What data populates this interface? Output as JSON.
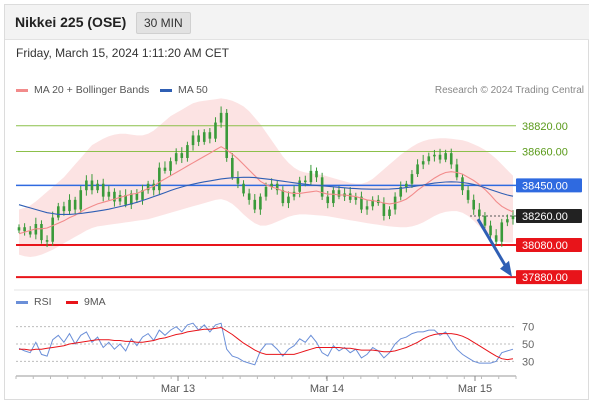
{
  "header": {
    "title": "Nikkei 225 (OSE)",
    "timeframe": "30 MIN"
  },
  "timestamp": "Friday, March 15, 2024 1:11:20 AM CET",
  "legend": {
    "ma20_label": "MA 20 + Bollinger Bands",
    "ma50_label": "MA 50"
  },
  "research_credit": "Research © 2024 Trading Central",
  "colors": {
    "ma20": "#f28b8b",
    "ma50": "#2f5fb4",
    "band_fill": "#fbd9d9",
    "candle": "#3a9a3a",
    "resistance": "#8cc04a",
    "support": "#e8141a",
    "pivot": "#2f6ae0",
    "current": "#222222",
    "rsi": "#6b8fd8",
    "rsi_ma": "#e8141a",
    "arrow": "#2f5fb4"
  },
  "chart_data": {
    "type": "candlestick",
    "interval": "30 MIN",
    "x_ticks": [
      "Mar 13",
      "Mar 14",
      "Mar 15"
    ],
    "ylim": [
      37850,
      38980
    ],
    "levels": [
      {
        "value": 38820,
        "label": "38820.00",
        "kind": "resistance"
      },
      {
        "value": 38660,
        "label": "38660.00",
        "kind": "resistance"
      },
      {
        "value": 38450,
        "label": "38450.00",
        "kind": "pivot"
      },
      {
        "value": 38260,
        "label": "38260.00",
        "kind": "current"
      },
      {
        "value": 38080,
        "label": "38080.00",
        "kind": "support"
      },
      {
        "value": 37880,
        "label": "37880.00",
        "kind": "support"
      }
    ],
    "closes": [
      38190,
      38165,
      38145,
      38210,
      38110,
      38100,
      38250,
      38320,
      38290,
      38360,
      38300,
      38420,
      38480,
      38420,
      38460,
      38380,
      38410,
      38350,
      38390,
      38330,
      38400,
      38360,
      38420,
      38460,
      38420,
      38560,
      38540,
      38600,
      38650,
      38620,
      38700,
      38760,
      38720,
      38780,
      38740,
      38840,
      38900,
      38620,
      38500,
      38460,
      38400,
      38360,
      38300,
      38380,
      38440,
      38460,
      38420,
      38340,
      38380,
      38410,
      38480,
      38470,
      38540,
      38500,
      38380,
      38340,
      38420,
      38380,
      38400,
      38360,
      38380,
      38300,
      38320,
      38360,
      38340,
      38260,
      38300,
      38380,
      38440,
      38460,
      38520,
      38580,
      38600,
      38630,
      38640,
      38610,
      38650,
      38580,
      38500,
      38420,
      38360,
      38300,
      38260,
      38200,
      38140,
      38100,
      38220,
      38240,
      38260
    ],
    "ma20": [
      38150,
      38160,
      38170,
      38180,
      38180,
      38185,
      38200,
      38215,
      38230,
      38250,
      38265,
      38285,
      38305,
      38320,
      38335,
      38345,
      38355,
      38365,
      38375,
      38385,
      38395,
      38400,
      38415,
      38430,
      38445,
      38470,
      38490,
      38510,
      38530,
      38550,
      38570,
      38590,
      38610,
      38630,
      38650,
      38670,
      38690,
      38670,
      38645,
      38615,
      38580,
      38545,
      38510,
      38475,
      38455,
      38440,
      38430,
      38415,
      38405,
      38400,
      38400,
      38405,
      38410,
      38415,
      38405,
      38395,
      38395,
      38390,
      38390,
      38385,
      38380,
      38370,
      38360,
      38355,
      38350,
      38340,
      38335,
      38340,
      38350,
      38365,
      38390,
      38420,
      38445,
      38470,
      38495,
      38515,
      38530,
      38535,
      38530,
      38520,
      38500,
      38480,
      38455,
      38425,
      38390,
      38350,
      38320,
      38300,
      38285
    ],
    "ma50": [
      38330,
      38320,
      38310,
      38300,
      38290,
      38280,
      38275,
      38270,
      38270,
      38270,
      38272,
      38275,
      38280,
      38285,
      38290,
      38296,
      38302,
      38310,
      38318,
      38326,
      38335,
      38345,
      38356,
      38368,
      38380,
      38392,
      38405,
      38418,
      38430,
      38440,
      38450,
      38458,
      38465,
      38472,
      38478,
      38484,
      38490,
      38494,
      38497,
      38499,
      38500,
      38500,
      38498,
      38494,
      38490,
      38486,
      38481,
      38476,
      38471,
      38466,
      38461,
      38457,
      38453,
      38450,
      38447,
      38444,
      38441,
      38438,
      38435,
      38432,
      38430,
      38428,
      38427,
      38426,
      38426,
      38426,
      38427,
      38429,
      38432,
      38436,
      38441,
      38447,
      38453,
      38459,
      38464,
      38468,
      38471,
      38472,
      38471,
      38468,
      38463,
      38456,
      38447,
      38436,
      38424,
      38412,
      38400,
      38390,
      38383
    ],
    "bb_upper": [
      38300,
      38310,
      38325,
      38350,
      38380,
      38410,
      38440,
      38470,
      38500,
      38540,
      38580,
      38620,
      38660,
      38700,
      38720,
      38740,
      38755,
      38765,
      38770,
      38770,
      38765,
      38760,
      38760,
      38770,
      38790,
      38820,
      38850,
      38880,
      38900,
      38920,
      38940,
      38960,
      38970,
      38975,
      38980,
      38985,
      38990,
      38985,
      38975,
      38960,
      38940,
      38910,
      38870,
      38830,
      38780,
      38730,
      38680,
      38630,
      38590,
      38560,
      38540,
      38530,
      38525,
      38520,
      38515,
      38505,
      38495,
      38485,
      38475,
      38465,
      38460,
      38460,
      38470,
      38490,
      38520,
      38550,
      38580,
      38610,
      38640,
      38665,
      38690,
      38710,
      38725,
      38735,
      38740,
      38742,
      38742,
      38740,
      38735,
      38730,
      38720,
      38705,
      38690,
      38670,
      38645,
      38615,
      38580,
      38545,
      38510
    ],
    "bb_lower": [
      38020,
      38010,
      38005,
      38010,
      38020,
      38035,
      38050,
      38070,
      38090,
      38110,
      38130,
      38150,
      38170,
      38185,
      38195,
      38200,
      38205,
      38210,
      38215,
      38220,
      38225,
      38230,
      38235,
      38240,
      38250,
      38260,
      38270,
      38280,
      38290,
      38300,
      38310,
      38320,
      38330,
      38340,
      38350,
      38360,
      38365,
      38355,
      38335,
      38305,
      38270,
      38240,
      38215,
      38200,
      38200,
      38210,
      38225,
      38240,
      38255,
      38265,
      38270,
      38270,
      38268,
      38265,
      38262,
      38258,
      38252,
      38246,
      38240,
      38234,
      38228,
      38222,
      38216,
      38210,
      38205,
      38200,
      38195,
      38192,
      38190,
      38190,
      38195,
      38205,
      38220,
      38240,
      38260,
      38275,
      38285,
      38290,
      38290,
      38280,
      38260,
      38230,
      38195,
      38160,
      38130,
      38110,
      38100,
      38095,
      38095
    ],
    "rsi_ylim": [
      20,
      80
    ],
    "rsi_levels": [
      70,
      50,
      30
    ],
    "rsi": [
      45,
      42,
      40,
      52,
      38,
      36,
      55,
      60,
      52,
      62,
      50,
      60,
      64,
      52,
      58,
      46,
      52,
      44,
      50,
      42,
      56,
      48,
      58,
      62,
      54,
      66,
      60,
      66,
      70,
      64,
      72,
      74,
      66,
      72,
      64,
      72,
      74,
      44,
      36,
      34,
      30,
      28,
      26,
      42,
      50,
      50,
      44,
      36,
      44,
      48,
      56,
      52,
      60,
      52,
      40,
      36,
      48,
      42,
      46,
      40,
      44,
      34,
      38,
      46,
      42,
      34,
      40,
      50,
      56,
      58,
      62,
      64,
      64,
      66,
      66,
      60,
      64,
      54,
      44,
      38,
      34,
      30,
      28,
      28,
      28,
      30,
      40,
      42,
      44
    ],
    "rsi_ma": [
      44,
      44,
      43,
      44,
      44,
      45,
      46,
      47,
      48,
      50,
      51,
      52,
      53,
      54,
      55,
      55,
      55,
      54,
      54,
      53,
      53,
      52,
      52,
      53,
      54,
      56,
      57,
      59,
      61,
      62,
      64,
      65,
      66,
      67,
      67,
      68,
      69,
      65,
      61,
      56,
      51,
      47,
      43,
      40,
      38,
      38,
      38,
      38,
      38,
      38,
      40,
      42,
      44,
      46,
      46,
      46,
      46,
      46,
      45,
      45,
      44,
      43,
      43,
      43,
      42,
      41,
      41,
      42,
      44,
      46,
      49,
      52,
      56,
      59,
      61,
      62,
      62,
      62,
      61,
      59,
      56,
      52,
      48,
      44,
      40,
      36,
      33,
      32,
      33
    ]
  }
}
